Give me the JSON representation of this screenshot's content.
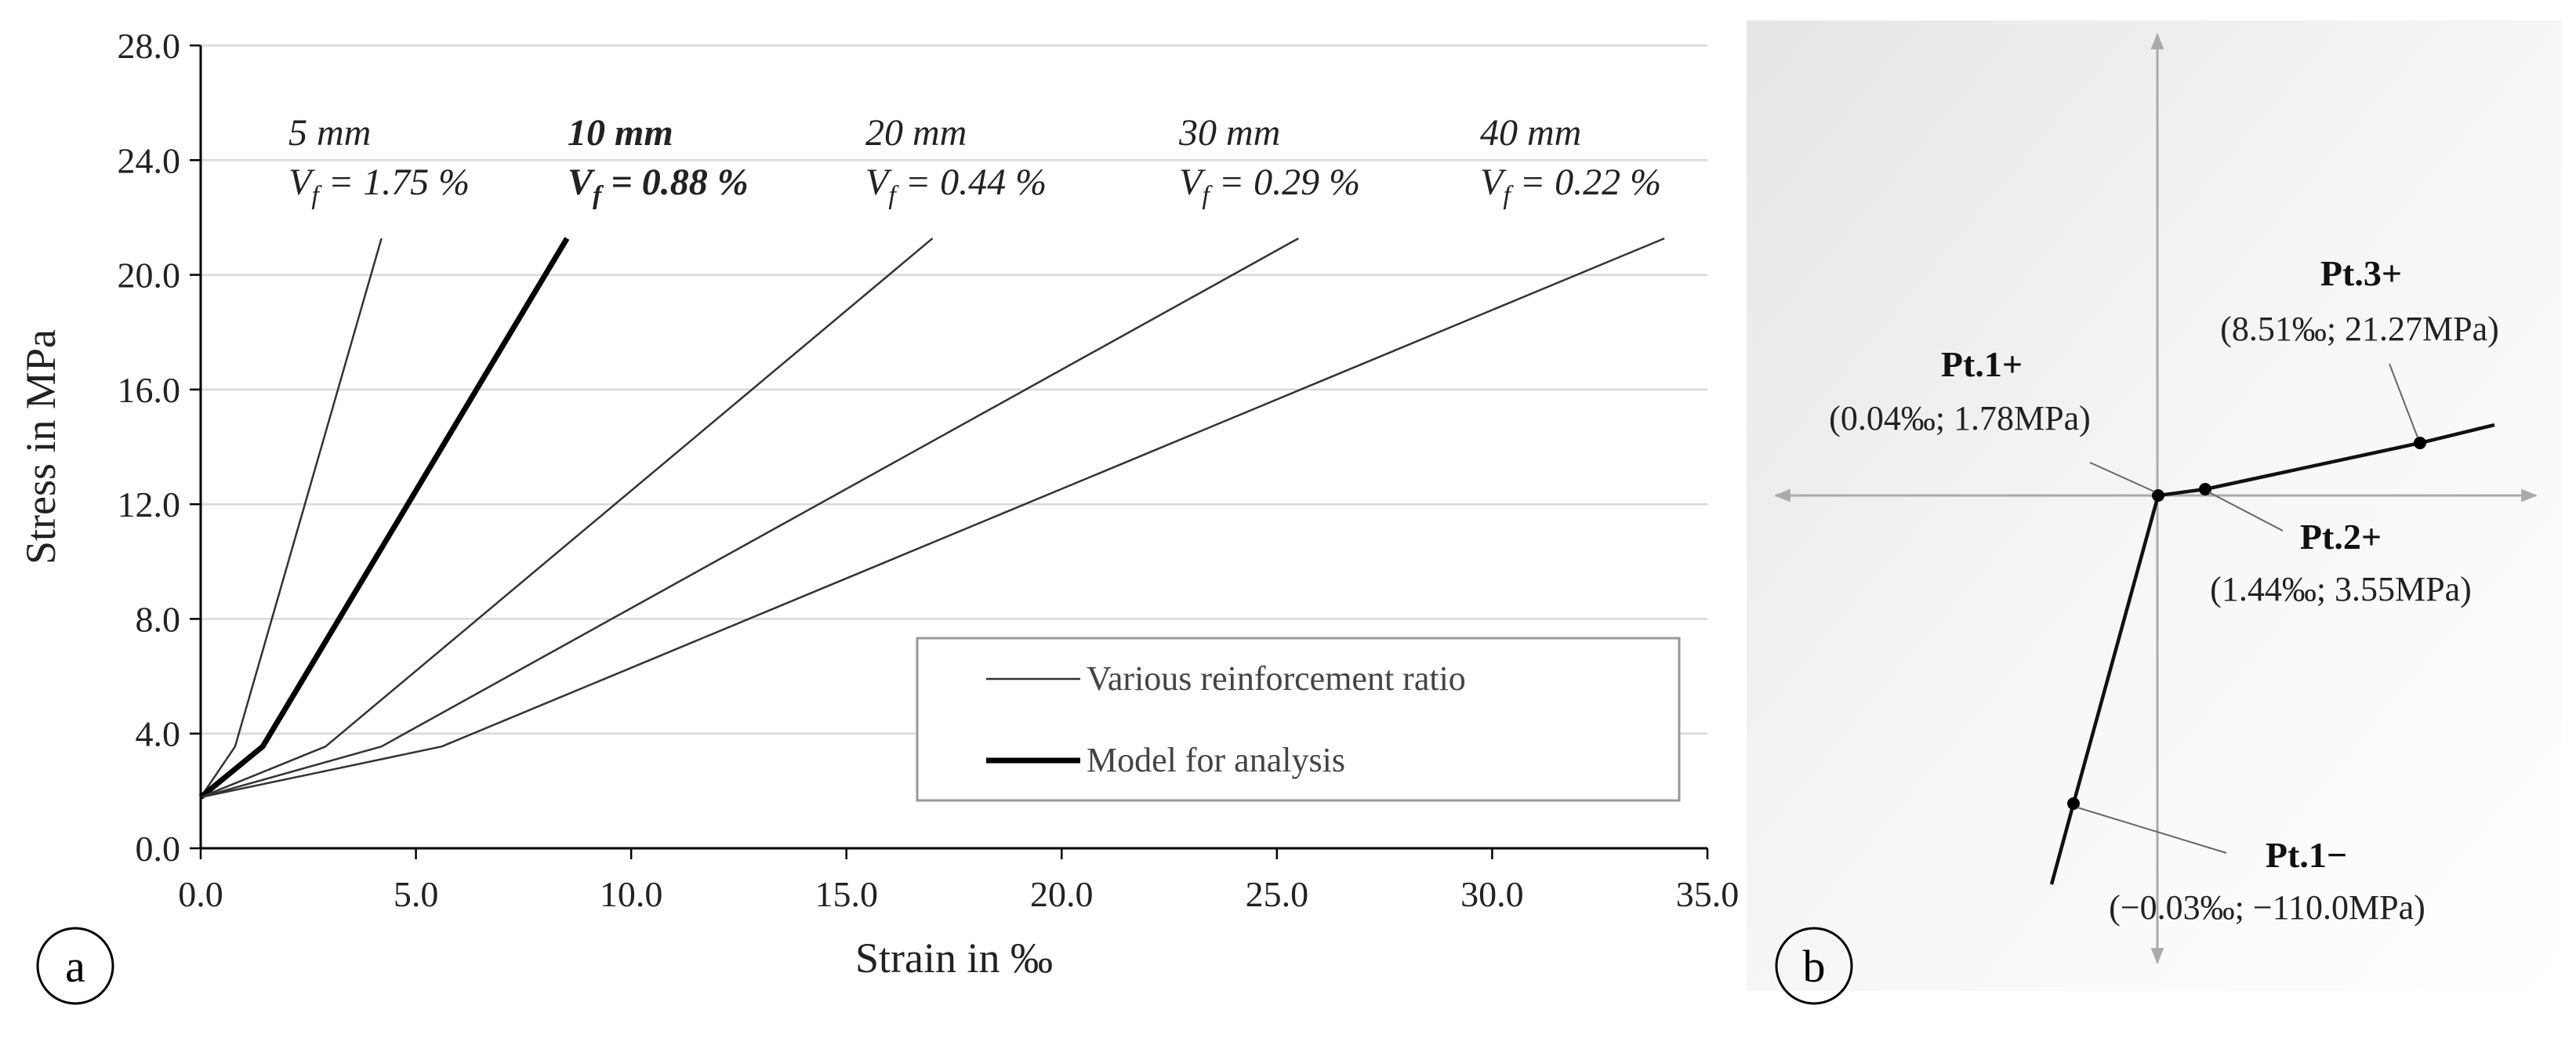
{
  "panel_labels": {
    "a": "a",
    "b": "b"
  },
  "chart_data": [
    {
      "panel": "a",
      "type": "line",
      "xlabel": "Strain in ‰",
      "ylabel": "Stress in MPa",
      "xlim": [
        0,
        35
      ],
      "ylim": [
        0,
        28
      ],
      "x_ticks": [
        "0.0",
        "5.0",
        "10.0",
        "15.0",
        "20.0",
        "25.0",
        "30.0",
        "35.0"
      ],
      "y_ticks": [
        "0.0",
        "4.0",
        "8.0",
        "12.0",
        "16.0",
        "20.0",
        "24.0",
        "28.0"
      ],
      "grid": "horizontal",
      "legend_position": "bottom-right",
      "legend": [
        {
          "label": "Various reinforcement ratio",
          "style": "thin"
        },
        {
          "label": "Model for analysis",
          "style": "thick"
        }
      ],
      "series": [
        {
          "name": "5 mm",
          "length": "5 mm",
          "vf": "V",
          "vf_sub": "f",
          "vf_rest": " = 1.75 %",
          "bold": false,
          "x": [
            0,
            0.8,
            4.2
          ],
          "y": [
            1.78,
            3.55,
            21.27
          ]
        },
        {
          "name": "10 mm",
          "length": "10 mm",
          "vf": "V",
          "vf_sub": "f",
          "vf_rest": " = 0.88 %",
          "bold": true,
          "x": [
            0,
            1.44,
            8.51
          ],
          "y": [
            1.78,
            3.55,
            21.27
          ]
        },
        {
          "name": "20 mm",
          "length": "20 mm",
          "vf": "V",
          "vf_sub": "f",
          "vf_rest": " = 0.44 %",
          "bold": false,
          "x": [
            0,
            2.9,
            17.0
          ],
          "y": [
            1.78,
            3.55,
            21.27
          ]
        },
        {
          "name": "30 mm",
          "length": "30 mm",
          "vf": "V",
          "vf_sub": "f",
          "vf_rest": " = 0.29 %",
          "bold": false,
          "x": [
            0,
            4.2,
            25.5
          ],
          "y": [
            1.78,
            3.55,
            21.27
          ]
        },
        {
          "name": "40 mm",
          "length": "40 mm",
          "vf": "V",
          "vf_sub": "f",
          "vf_rest": " = 0.22 %",
          "bold": false,
          "x": [
            0,
            5.6,
            34.0
          ],
          "y": [
            1.78,
            3.55,
            21.27
          ]
        }
      ]
    },
    {
      "panel": "b",
      "type": "diagram",
      "title": "",
      "points": [
        {
          "name": "Pt.1+",
          "label": "Pt.1+",
          "value": "(0.04‰; 1.78MPa)"
        },
        {
          "name": "Pt.2+",
          "label": "Pt.2+",
          "value": "(1.44‰; 3.55MPa)"
        },
        {
          "name": "Pt.3+",
          "label": "Pt.3+",
          "value": "(8.51‰; 21.27MPa)"
        },
        {
          "name": "Pt.1−",
          "label": "Pt.1−",
          "value": "(−0.03‰; −110.0MPa)"
        }
      ]
    }
  ]
}
